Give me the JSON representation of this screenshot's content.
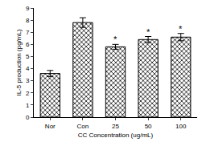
{
  "chart_data": {
    "type": "bar",
    "categories": [
      "Nor",
      "Con",
      "25",
      "50",
      "100"
    ],
    "values": [
      3.6,
      7.8,
      5.8,
      6.4,
      6.6
    ],
    "errors": [
      0.25,
      0.4,
      0.2,
      0.25,
      0.3
    ],
    "color": "#000000",
    "x_label": "CC Concentration (ug/mL)",
    "y_label": "IL-5 production (pg/mL)",
    "ylim": [
      0,
      9
    ],
    "yticks": [
      0,
      1,
      2,
      3,
      4,
      5,
      6,
      7,
      8,
      9
    ],
    "grid": false,
    "annotations": [
      {
        "category": "25",
        "text": "*"
      },
      {
        "category": "50",
        "text": "*"
      },
      {
        "category": "100",
        "text": "*"
      }
    ]
  }
}
